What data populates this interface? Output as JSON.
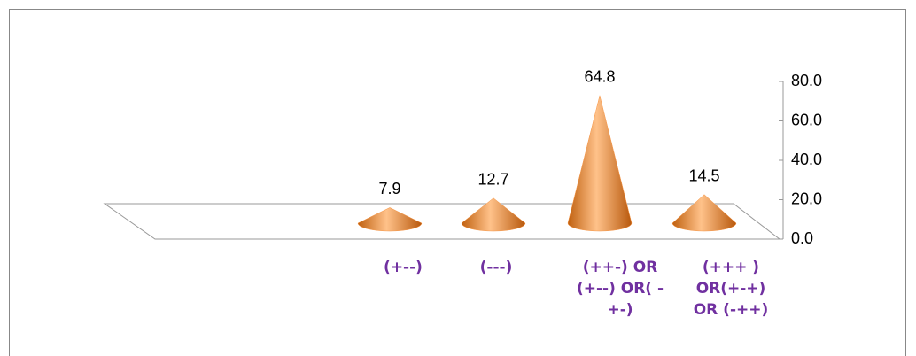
{
  "chart_data": {
    "type": "cone",
    "categories": [
      "(+--)",
      "(---)",
      "(++-) OR\n(+--) OR( -\n+-)",
      "(+++ )\nOR(+-+)\nOR (-++)"
    ],
    "values": [
      7.9,
      12.7,
      64.8,
      14.5
    ],
    "color": "#f79646",
    "ylim": [
      0,
      80
    ],
    "yticks": [
      {
        "value": 0,
        "label": "0.0"
      },
      {
        "value": 20,
        "label": "20.0"
      },
      {
        "value": 40,
        "label": "40.0"
      },
      {
        "value": 60,
        "label": "60.0"
      },
      {
        "value": 80,
        "label": "80.0"
      }
    ]
  }
}
